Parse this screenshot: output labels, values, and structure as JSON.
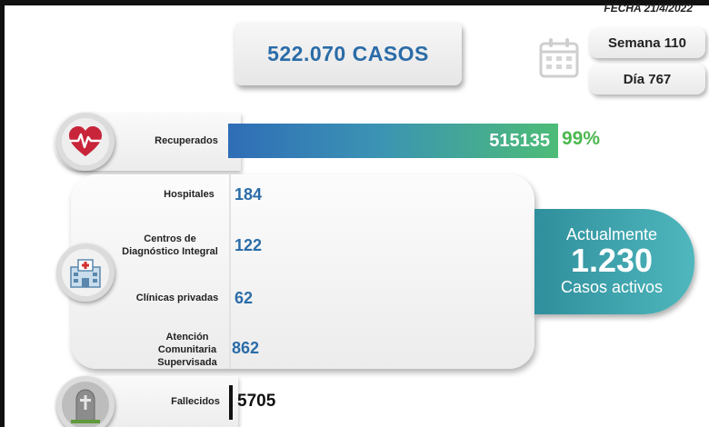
{
  "header": {
    "date": "FECHA 21/4/2022",
    "total_cases": "522.070 CASOS",
    "week": "Semana 110",
    "day": "Día 767"
  },
  "recovered": {
    "label": "Recuperados",
    "value": "515135",
    "percent": "99%",
    "fraction": 0.99
  },
  "facilities": [
    {
      "label": "Hospitales",
      "value": "184"
    },
    {
      "label": "Centros de Diagnóstico Integral",
      "value": "122"
    },
    {
      "label": "Clínicas privadas",
      "value": "62"
    },
    {
      "label": "Atención Comunitaria Supervisada",
      "value": "862"
    }
  ],
  "active": {
    "line1": "Actualmente",
    "count": "1.230",
    "line2": "Casos activos"
  },
  "deaths": {
    "label": "Fallecidos",
    "value": "5705"
  },
  "colors": {
    "accent_blue": "#2a6ca8",
    "recovered_green": "#4cb84f",
    "active_teal": "#3fa6ad",
    "heart_red": "#c8243a"
  },
  "icons": {
    "calendar": "calendar-icon",
    "heart": "heartbeat-icon",
    "hospital": "hospital-icon",
    "grave": "tombstone-icon"
  }
}
